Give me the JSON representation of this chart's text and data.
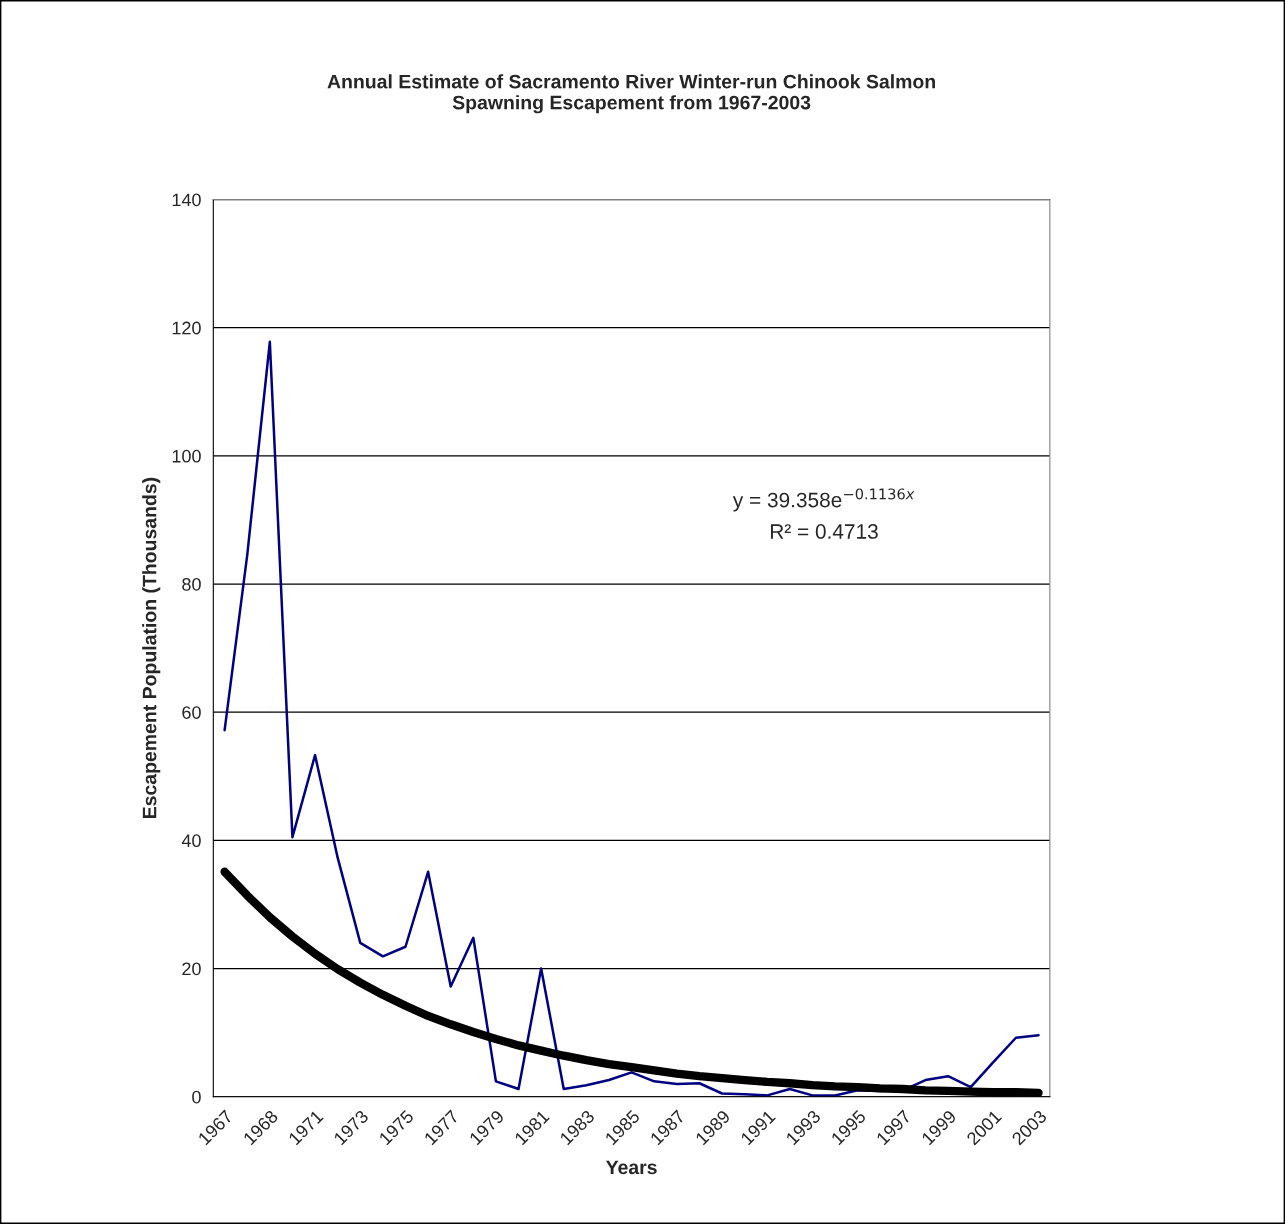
{
  "chart_data": {
    "type": "line",
    "title": "Annual Estimate of Sacramento River Winter-run Chinook Salmon\nSpawning Escapement from 1967-2003",
    "xlabel": "Years",
    "ylabel": "Escapement Population (Thousands)",
    "categories": [
      "1967",
      null,
      "1968",
      null,
      "1971",
      null,
      "1973",
      null,
      "1975",
      null,
      "1977",
      null,
      "1979",
      null,
      "1981",
      null,
      "1983",
      null,
      "1985",
      null,
      "1987",
      null,
      "1989",
      null,
      "1991",
      null,
      "1993",
      null,
      "1995",
      null,
      "1997",
      null,
      "1999",
      null,
      "2001",
      null,
      "2003"
    ],
    "series": [
      {
        "color": "#000080",
        "line_style": "solid",
        "values": [
          57.2,
          84.5,
          117.8,
          40.5,
          53.3,
          37.3,
          24.0,
          21.9,
          23.4,
          35.1,
          17.2,
          24.8,
          2.4,
          1.2,
          20.0,
          1.2,
          1.8,
          2.6,
          3.8,
          2.4,
          2.0,
          2.1,
          0.5,
          0.4,
          0.2,
          1.2,
          0.2,
          0.2,
          1.0,
          0.9,
          1.0,
          2.6,
          3.2,
          1.5,
          5.4,
          9.2,
          9.6
        ]
      },
      {
        "color": "#000000",
        "line_style": "solid",
        "values": [
          35.1,
          31.4,
          28.0,
          25.0,
          22.3,
          19.9,
          17.8,
          15.9,
          14.2,
          12.6,
          11.3,
          10.1,
          9.0,
          8.0,
          7.2,
          6.4,
          5.7,
          5.1,
          4.6,
          4.1,
          3.6,
          3.2,
          2.9,
          2.6,
          2.3,
          2.1,
          1.8,
          1.6,
          1.5,
          1.3,
          1.2,
          1.0,
          0.9,
          0.8,
          0.7,
          0.7,
          0.6
        ]
      }
    ],
    "ylim": [
      0,
      140
    ],
    "yticks": [
      0,
      20,
      40,
      60,
      80,
      100,
      120,
      140
    ],
    "grid": "y",
    "legend": false,
    "marker": "none",
    "annotations": [
      "y = 39.358e$^{−0.1136x}$",
      "R² = 0.4713"
    ]
  }
}
